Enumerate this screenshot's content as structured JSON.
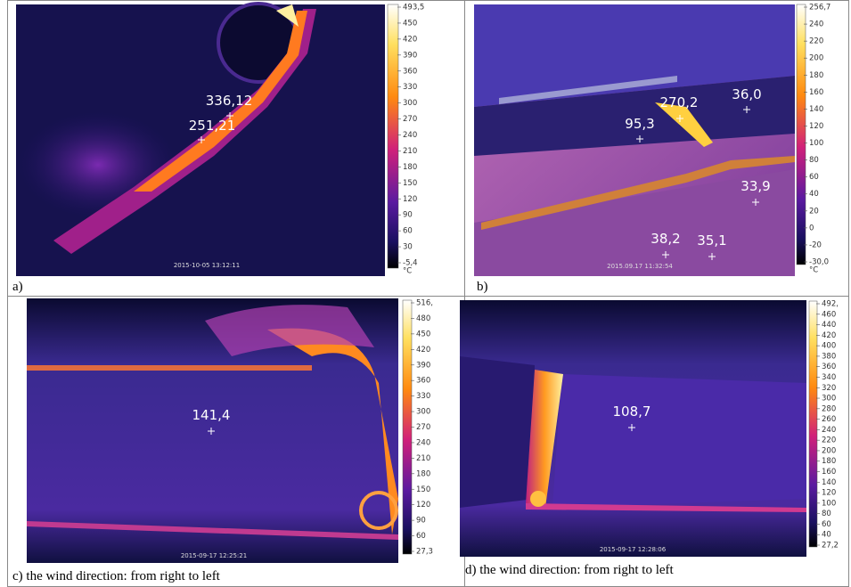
{
  "panels": [
    {
      "caption": "a)",
      "timestamp": "2015-10-05 13:12:11",
      "scale": [
        "493,5",
        "450",
        "420",
        "390",
        "360",
        "330",
        "300",
        "270",
        "240",
        "210",
        "180",
        "150",
        "120",
        "90",
        "60",
        "30",
        "-5,4"
      ],
      "unit": "°C",
      "points": [
        "336,12",
        "251,21"
      ]
    },
    {
      "caption": "b)",
      "timestamp": "2015.09.17 11:32:54",
      "scale": [
        "256,7",
        "240",
        "220",
        "200",
        "180",
        "160",
        "140",
        "120",
        "100",
        "80",
        "60",
        "40",
        "20",
        "0",
        "-20",
        "-30,0"
      ],
      "unit": "°C",
      "points": [
        "270,2",
        "36,0",
        "95,3",
        "33,9",
        "38,2",
        "35,1"
      ]
    },
    {
      "caption": "c)  the wind direction: from right to left",
      "timestamp": "2015-09-17 12:25:21",
      "scale": [
        "516,",
        "480",
        "450",
        "420",
        "390",
        "360",
        "330",
        "300",
        "270",
        "240",
        "210",
        "180",
        "150",
        "120",
        "90",
        "60",
        "27,3"
      ],
      "points": [
        "141,4"
      ]
    },
    {
      "caption": "d) the wind direction: from right to left",
      "timestamp": "2015-09-17 12:28:06",
      "scale": [
        "492,",
        "460",
        "440",
        "420",
        "400",
        "380",
        "360",
        "340",
        "320",
        "300",
        "280",
        "260",
        "240",
        "220",
        "200",
        "180",
        "160",
        "140",
        "120",
        "100",
        "80",
        "60",
        "40",
        "27,2"
      ],
      "points": [
        "108,7"
      ]
    }
  ]
}
